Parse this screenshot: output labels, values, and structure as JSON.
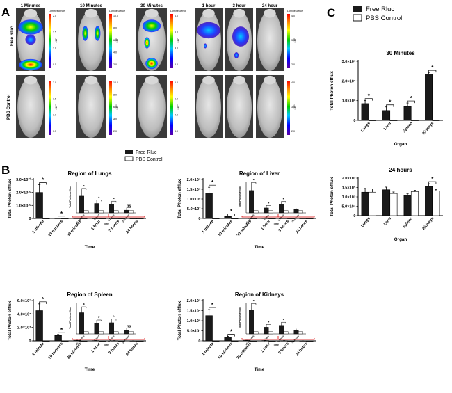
{
  "panel_labels": {
    "a": "A",
    "b": "B",
    "c": "C"
  },
  "imaging": {
    "row_labels": [
      "Free Rluc",
      "PBS Control"
    ],
    "time_labels": [
      "1 Minutes",
      "10 Minutes",
      "30 Minutes",
      "1 hour",
      "3 hour",
      "24 hour"
    ],
    "colorbar_title": "Luminescence",
    "colorbars": [
      {
        "ticks": [
          "2.0",
          "1.5",
          "1.0",
          "0.5"
        ],
        "unit": "x10⁸"
      },
      {
        "ticks": [
          "10.0",
          "8.0",
          "6.0",
          "4.0",
          "2.0"
        ],
        "unit": "x10⁶"
      },
      {
        "ticks": [
          "6.0",
          "5.0",
          "4.0",
          "3.0"
        ],
        "unit": "x10⁵"
      },
      {
        "ticks": [
          "4.0",
          "3.0",
          "2.0"
        ],
        "unit": "x10⁵"
      }
    ]
  },
  "legend": {
    "free": "Free Rluc",
    "pbs": "PBS Control"
  },
  "colors": {
    "free": "#1a1a1a",
    "pbs": "#ffffff",
    "axis": "#000000",
    "bracket": "#d40000"
  },
  "sig_marker": "*",
  "ns_marker": "ns",
  "chart_data": [
    {
      "id": "lungs",
      "type": "bar",
      "title": "Region of Lungs",
      "ylabel": "Total Photon efflux",
      "xlabel": "Time",
      "categories": [
        "1 minute",
        "10 minutes",
        "30 minutes",
        "1 hour",
        "3 hours",
        "24 hours"
      ],
      "yticks": [
        "0",
        "1.0×10¹⁰",
        "2.0×10¹⁰",
        "3.0×10¹⁰"
      ],
      "ylim": [
        0,
        30000000000.0
      ],
      "series": [
        {
          "name": "Free Rluc",
          "values": [
            20000000000.0,
            100000000.0,
            80000000.0,
            50000000.0,
            30000000.0,
            10000000.0
          ],
          "errors": [
            6000000000.0,
            30000000.0,
            20000000.0,
            10000000.0,
            8000000.0,
            3000000.0
          ]
        },
        {
          "name": "PBS Control",
          "values": [
            0,
            0,
            0,
            0,
            0,
            0
          ],
          "errors": [
            0,
            0,
            0,
            0,
            0,
            0
          ]
        }
      ],
      "sig": [
        "*",
        "*",
        "",
        "",
        "",
        ""
      ],
      "inset": {
        "ylabel": "Total Photon efflux",
        "xlabel": "Time",
        "categories": [
          "30 minutes",
          "1 hour",
          "3 hours",
          "24 hours"
        ],
        "ylim": [
          0,
          1.4
        ],
        "series": [
          {
            "name": "Free Rluc",
            "values": [
              0.75,
              0.42,
              0.38,
              0.12
            ],
            "errors": [
              0.28,
              0.1,
              0.08,
              0.05
            ]
          },
          {
            "name": "PBS Control",
            "values": [
              0.1,
              0.1,
              0.1,
              0.1
            ],
            "errors": [
              0.02,
              0.02,
              0.02,
              0.02
            ]
          }
        ],
        "sig": [
          "*",
          "*",
          "*",
          "ns"
        ]
      }
    },
    {
      "id": "liver",
      "type": "bar",
      "title": "Region of Liver",
      "ylabel": "Total Photon efflux",
      "xlabel": "Time",
      "categories": [
        "1 minute",
        "10 minutes",
        "30 minutes",
        "1 hour",
        "3 hours",
        "24 hours"
      ],
      "yticks": [
        "0",
        "5.0×10⁷",
        "1.0×10⁸",
        "1.5×10⁸",
        "2.0×10⁸"
      ],
      "ylim": [
        0,
        200000000.0
      ],
      "series": [
        {
          "name": "Free Rluc",
          "values": [
            130000000.0,
            10000000.0,
            1500000.0,
            1000000.0,
            800000.0,
            300000.0
          ],
          "errors": [
            30000000.0,
            3000000.0,
            600000.0,
            300000.0,
            200000.0,
            100000.0
          ]
        },
        {
          "name": "PBS Control",
          "values": [
            0,
            0,
            0,
            0,
            0,
            0
          ],
          "errors": [
            0,
            0,
            0,
            0,
            0,
            0
          ]
        }
      ],
      "sig": [
        "*",
        "*",
        "",
        "",
        "",
        ""
      ],
      "inset": {
        "ylabel": "Total Photon efflux",
        "xlabel": "Time",
        "categories": [
          "30 minutes",
          "1 hour",
          "3 hours",
          "24 hours"
        ],
        "ylim": [
          0,
          1.4
        ],
        "series": [
          {
            "name": "Free Rluc",
            "values": [
              1.0,
              0.22,
              0.38,
              0.16
            ],
            "errors": [
              0.3,
              0.05,
              0.07,
              0.04
            ]
          },
          {
            "name": "PBS Control",
            "values": [
              0.1,
              0.1,
              0.1,
              0.1
            ],
            "errors": [
              0.02,
              0.02,
              0.02,
              0.02
            ]
          }
        ],
        "sig": [
          "*",
          "*",
          "*",
          ""
        ]
      }
    },
    {
      "id": "spleen",
      "type": "bar",
      "title": "Region of Spleen",
      "ylabel": "Total Photon efflux",
      "xlabel": "Time",
      "categories": [
        "1 minute",
        "10 minutes",
        "30 minutes",
        "1 hour",
        "3 hours",
        "24 hours"
      ],
      "yticks": [
        "0",
        "2.0×10⁷",
        "4.0×10⁷",
        "6.0×10⁷"
      ],
      "ylim": [
        0,
        60000000.0
      ],
      "series": [
        {
          "name": "Free Rluc",
          "values": [
            45000000.0,
            8000000.0,
            600000.0,
            400000.0,
            300000.0,
            150000.0
          ],
          "errors": [
            10000000.0,
            1500000.0,
            200000.0,
            100000.0,
            100000.0,
            50000.0
          ]
        },
        {
          "name": "PBS Control",
          "values": [
            0,
            0,
            0,
            0,
            0,
            0
          ],
          "errors": [
            0,
            0,
            0,
            0,
            0,
            0
          ]
        }
      ],
      "sig": [
        "*",
        "*",
        "",
        "",
        "",
        ""
      ],
      "inset": {
        "ylabel": "Total Photon efflux",
        "xlabel": "Time",
        "categories": [
          "30 minutes",
          "1 hour",
          "3 hours",
          "24 hours"
        ],
        "ylim": [
          0,
          1.4
        ],
        "series": [
          {
            "name": "Free Rluc",
            "values": [
              0.95,
              0.48,
              0.5,
              0.15
            ],
            "errors": [
              0.2,
              0.08,
              0.1,
              0.05
            ]
          },
          {
            "name": "PBS Control",
            "values": [
              0.1,
              0.1,
              0.1,
              0.1
            ],
            "errors": [
              0.02,
              0.02,
              0.02,
              0.02
            ]
          }
        ],
        "sig": [
          "*",
          "*",
          "*",
          "ns"
        ]
      }
    },
    {
      "id": "kidneys",
      "type": "bar",
      "title": "Region of Kidneys",
      "ylabel": "Total Photon efflux",
      "xlabel": "Time",
      "categories": [
        "1 minute",
        "10 minutes",
        "30 minutes",
        "1 hour",
        "3 hours",
        "24 hours"
      ],
      "yticks": [
        "0",
        "5.0×10⁷",
        "1.0×10⁸",
        "1.5×10⁸",
        "2.0×10⁸"
      ],
      "ylim": [
        0,
        200000000.0
      ],
      "series": [
        {
          "name": "Free Rluc",
          "values": [
            125000000.0,
            18000000.0,
            2000000.0,
            1500000.0,
            1000000.0,
            500000.0
          ],
          "errors": [
            30000000.0,
            4000000.0,
            600000.0,
            400000.0,
            300000.0,
            100000.0
          ]
        },
        {
          "name": "PBS Control",
          "values": [
            0,
            0,
            0,
            0,
            0,
            0
          ],
          "errors": [
            0,
            0,
            0,
            0,
            0,
            0
          ]
        }
      ],
      "sig": [
        "*",
        "*",
        "",
        "",
        "",
        ""
      ],
      "inset": {
        "ylabel": "Total Photon efflux",
        "xlabel": "Time",
        "categories": [
          "30 minutes",
          "1 hour",
          "3 hours",
          "24 hours"
        ],
        "ylim": [
          0,
          1.4
        ],
        "series": [
          {
            "name": "Free Rluc",
            "values": [
              1.05,
              0.3,
              0.38,
              0.18
            ],
            "errors": [
              0.25,
              0.06,
              0.08,
              0.05
            ]
          },
          {
            "name": "PBS Control",
            "values": [
              0.1,
              0.1,
              0.1,
              0.1
            ],
            "errors": [
              0.02,
              0.02,
              0.02,
              0.02
            ]
          }
        ],
        "sig": [
          "*",
          "*",
          "*",
          ""
        ]
      }
    },
    {
      "id": "organ30",
      "type": "bar",
      "title": "30 Minutes",
      "ylabel": "Total Photon efflux",
      "xlabel": "Organ",
      "categories": [
        "Lungs",
        "Liver",
        "Spleen",
        "Kidneys"
      ],
      "yticks": [
        "0",
        "1.0×10⁸",
        "2.0×10⁸",
        "3.0×10⁸"
      ],
      "ylim": [
        0,
        300000000.0
      ],
      "series": [
        {
          "name": "Free Rluc",
          "values": [
            85000000.0,
            50000000.0,
            70000000.0,
            235000000.0
          ],
          "errors": [
            15000000.0,
            18000000.0,
            18000000.0,
            8000000.0
          ]
        },
        {
          "name": "PBS Control",
          "values": [
            200000.0,
            200000.0,
            200000.0,
            200000.0
          ],
          "errors": [
            0,
            0,
            0,
            0
          ]
        }
      ],
      "sig": [
        "*",
        "*",
        "*",
        "*"
      ]
    },
    {
      "id": "organ24",
      "type": "bar",
      "title": "24 hours",
      "ylabel": "Total Photon efflux",
      "xlabel": "Organ",
      "categories": [
        "Lungs",
        "Liver",
        "Spleen",
        "Kidneys"
      ],
      "yticks": [
        "0",
        "5.0×10⁴",
        "1.0×10⁵",
        "1.5×10⁵",
        "2.0×10⁵"
      ],
      "ylim": [
        0,
        200000.0
      ],
      "series": [
        {
          "name": "Free Rluc",
          "values": [
            125000.0,
            138000.0,
            108000.0,
            155000.0
          ],
          "errors": [
            20000.0,
            14000.0,
            8000.0,
            15000.0
          ]
        },
        {
          "name": "PBS Control",
          "values": [
            125000.0,
            118000.0,
            128000.0,
            132000.0
          ],
          "errors": [
            18000.0,
            8000.0,
            7000.0,
            8000.0
          ]
        }
      ],
      "sig": [
        "",
        "",
        "",
        "*"
      ]
    }
  ]
}
